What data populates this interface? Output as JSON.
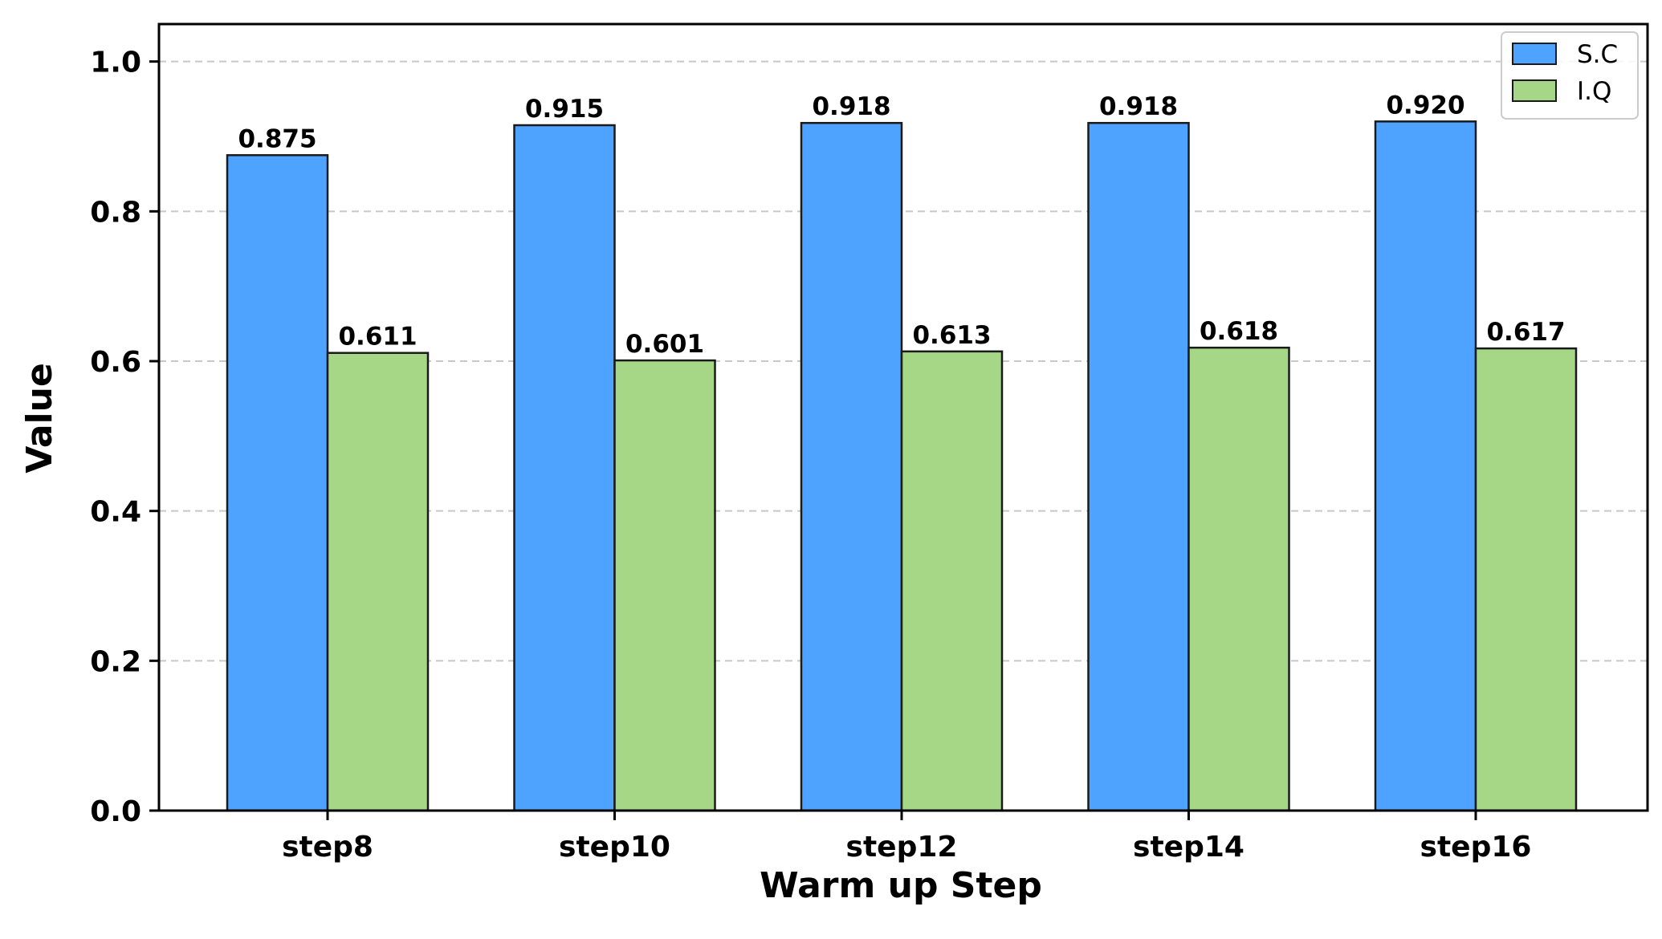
{
  "chart_data": {
    "type": "bar",
    "xlabel": "Warm up Step",
    "ylabel": "Value",
    "categories": [
      "step8",
      "step10",
      "step12",
      "step14",
      "step16"
    ],
    "series": [
      {
        "name": "S.C",
        "color": "#4da3ff",
        "values": [
          0.875,
          0.915,
          0.918,
          0.918,
          0.92
        ],
        "labels": [
          "0.875",
          "0.915",
          "0.918",
          "0.918",
          "0.920"
        ]
      },
      {
        "name": "I.Q",
        "color": "#a5d787",
        "values": [
          0.611,
          0.601,
          0.613,
          0.618,
          0.617
        ],
        "labels": [
          "0.611",
          "0.601",
          "0.613",
          "0.618",
          "0.617"
        ]
      }
    ],
    "ylim": [
      0,
      1.05
    ],
    "yticks": [
      "0.0",
      "0.2",
      "0.4",
      "0.6",
      "0.8",
      "1.0"
    ],
    "grid": "horizontal dashed",
    "legend_position": "top-right"
  }
}
